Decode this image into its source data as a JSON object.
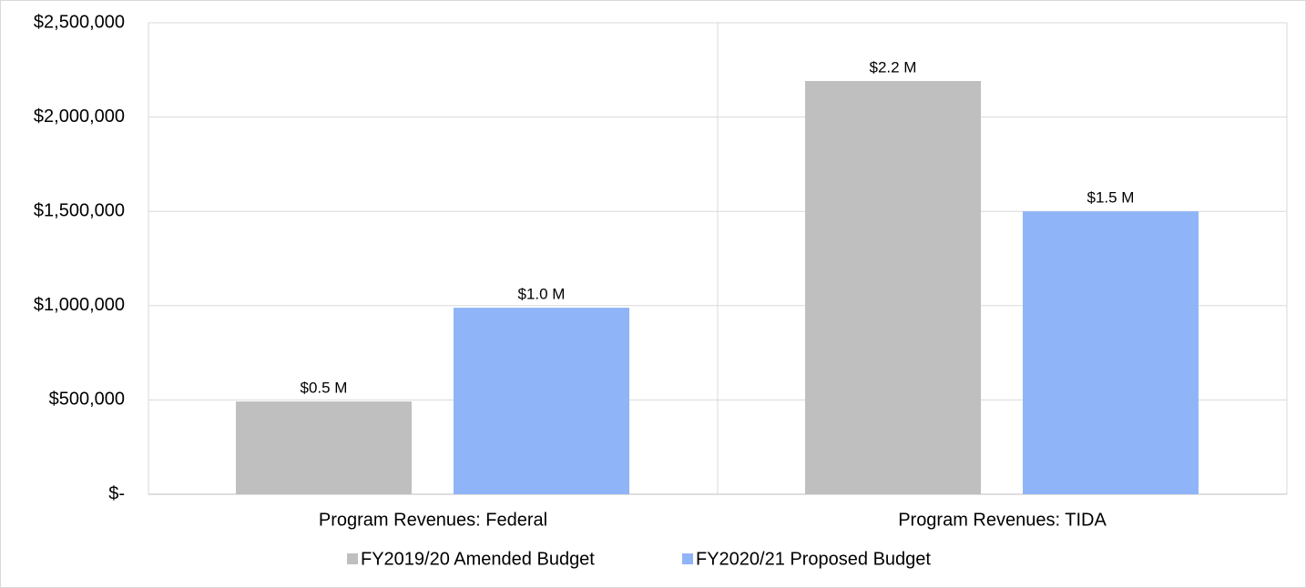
{
  "chart_data": {
    "type": "bar",
    "categories": [
      "Program Revenues: Federal",
      "Program Revenues: TIDA"
    ],
    "series": [
      {
        "name": "FY2019/20 Amended Budget",
        "color": "#bfbfbf",
        "values": [
          492000,
          2191000
        ],
        "value_labels": [
          "$0.5 M",
          "$2.2 M"
        ]
      },
      {
        "name": "FY2020/21 Proposed Budget",
        "color": "#8fb4f8",
        "values": [
          989000,
          1500000
        ],
        "value_labels": [
          "$1.0 M",
          "$1.5 M"
        ]
      }
    ],
    "ylim": [
      0,
      2500000
    ],
    "yticks": [
      {
        "value": 0,
        "label": "$-"
      },
      {
        "value": 500000,
        "label": "$500,000"
      },
      {
        "value": 1000000,
        "label": "$1,000,000"
      },
      {
        "value": 1500000,
        "label": "$1,500,000"
      },
      {
        "value": 2000000,
        "label": "$2,000,000"
      },
      {
        "value": 2500000,
        "label": "$2,500,000"
      }
    ],
    "grid": true,
    "legend": "bottom"
  }
}
